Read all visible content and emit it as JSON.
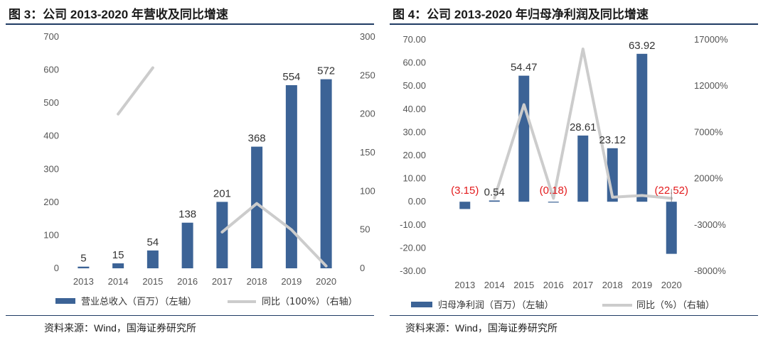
{
  "colors": {
    "bar": "#3c6396",
    "line": "#cccccc",
    "negative_label": "#e31a1c",
    "rule": "#1f3b63"
  },
  "charts": [
    {
      "title": "图 3：公司 2013-2020 年营收及同比增速",
      "source": "资料来源：Wind，国海证券研究所",
      "legend": {
        "bar": "营业总收入（百万）（左轴）",
        "line": "同比（100%）（右轴）"
      },
      "left_ticks": [
        "0",
        "100",
        "200",
        "300",
        "400",
        "500",
        "600",
        "700"
      ],
      "right_ticks": [
        "0",
        "50",
        "100",
        "150",
        "200",
        "250",
        "300"
      ],
      "bar_labels": [
        "5",
        "15",
        "54",
        "138",
        "201",
        "368",
        "554",
        "572"
      ]
    },
    {
      "title": "图 4：公司 2013-2020 年归母净利润及同比增速",
      "source": "资料来源：Wind，国海证券研究所",
      "legend": {
        "bar": "归母净利润（百万）（左轴）",
        "line": "同比（%）（右轴）"
      },
      "left_ticks": [
        "-30.00",
        "-20.00",
        "-10.00",
        "0.00",
        "10.00",
        "20.00",
        "30.00",
        "40.00",
        "50.00",
        "60.00",
        "70.00"
      ],
      "right_ticks": [
        "-8000%",
        "-3000%",
        "2000%",
        "7000%",
        "12000%",
        "17000%"
      ],
      "bar_labels": [
        "(3.15)",
        "0.54",
        "54.47",
        "(0.18)",
        "28.61",
        "23.12",
        "63.92",
        "(22.52)"
      ]
    }
  ],
  "chart_data": [
    {
      "type": "bar",
      "categories": [
        "2013",
        "2014",
        "2015",
        "2016",
        "2017",
        "2018",
        "2019",
        "2020"
      ],
      "series": [
        {
          "name": "营业总收入（百万）（左轴）",
          "type": "bar",
          "axis": "left",
          "values": [
            5,
            15,
            54,
            138,
            201,
            368,
            554,
            572
          ]
        },
        {
          "name": "同比（100%）（右轴）",
          "type": "line",
          "axis": "right",
          "values": [
            null,
            200,
            260,
            null,
            47,
            84,
            50,
            3
          ]
        }
      ],
      "ylim_left": [
        0,
        700
      ],
      "ylim_right": [
        0,
        300
      ],
      "legend_position": "bottom",
      "grid": false
    },
    {
      "type": "bar",
      "categories": [
        "2013",
        "2014",
        "2015",
        "2016",
        "2017",
        "2018",
        "2019",
        "2020"
      ],
      "series": [
        {
          "name": "归母净利润（百万）（左轴）",
          "type": "bar",
          "axis": "left",
          "values": [
            -3.15,
            0.54,
            54.47,
            -0.18,
            28.61,
            23.12,
            63.92,
            -22.52
          ]
        },
        {
          "name": "同比（%）（右轴）",
          "type": "line",
          "axis": "right",
          "values": [
            null,
            -117,
            9987,
            -133,
            16000,
            -19,
            176,
            -135
          ]
        }
      ],
      "ylim_left": [
        -30,
        70
      ],
      "ylim_right": [
        -8000,
        17000
      ],
      "legend_position": "bottom",
      "grid": false
    }
  ]
}
